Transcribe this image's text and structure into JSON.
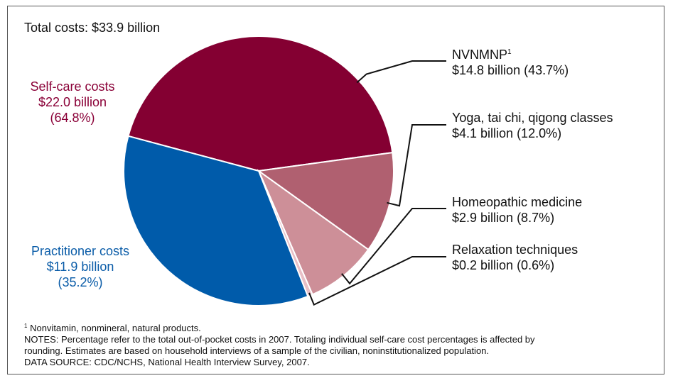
{
  "chart_data": {
    "type": "pie",
    "title": "Total costs: $33.9 billion",
    "slices": [
      {
        "name": "NVNMNP",
        "footnote": "1",
        "value_text": "$14.8 billion (43.7%)",
        "value": 14.8,
        "percent": 43.7,
        "color": "#840032"
      },
      {
        "name": "Yoga, tai chi, qigong classes",
        "value_text": "$4.1 billion (12.0%)",
        "value": 4.1,
        "percent": 12.0,
        "color": "#b06070"
      },
      {
        "name": "Homeopathic medicine",
        "value_text": "$2.9 billion (8.7%)",
        "value": 2.9,
        "percent": 8.7,
        "color": "#cd8f98"
      },
      {
        "name": "Relaxation techniques",
        "value_text": "$0.2 billion (0.6%)",
        "value": 0.2,
        "percent": 0.6,
        "color": "#e8bfc6"
      },
      {
        "name": "Practitioner costs",
        "value": 11.9,
        "percent": 35.2,
        "color": "#005baa"
      }
    ],
    "groups": {
      "self_care": {
        "line1": "Self-care costs",
        "line2": "$22.0 billion",
        "line3": "(64.8%)",
        "color": "#8a0037"
      },
      "practitioner": {
        "line1": "Practitioner costs",
        "line2": "$11.9 billion",
        "line3": "(35.2%)",
        "color": "#0a5ca8"
      }
    }
  },
  "notes": {
    "footnote_marker": "1",
    "footnote": "Nonvitamin, nonmineral, natural products.",
    "notes_line1": "NOTES: Percentage refer to the total out-of-pocket costs in 2007.  Totaling individual self-care cost percentages is affected by",
    "notes_line2": "rounding. Estimates are based on household interviews of a sample of the civilian, noninstitutionalized population.",
    "source": "DATA SOURCE: CDC/NCHS, National Health Interview Survey, 2007."
  }
}
